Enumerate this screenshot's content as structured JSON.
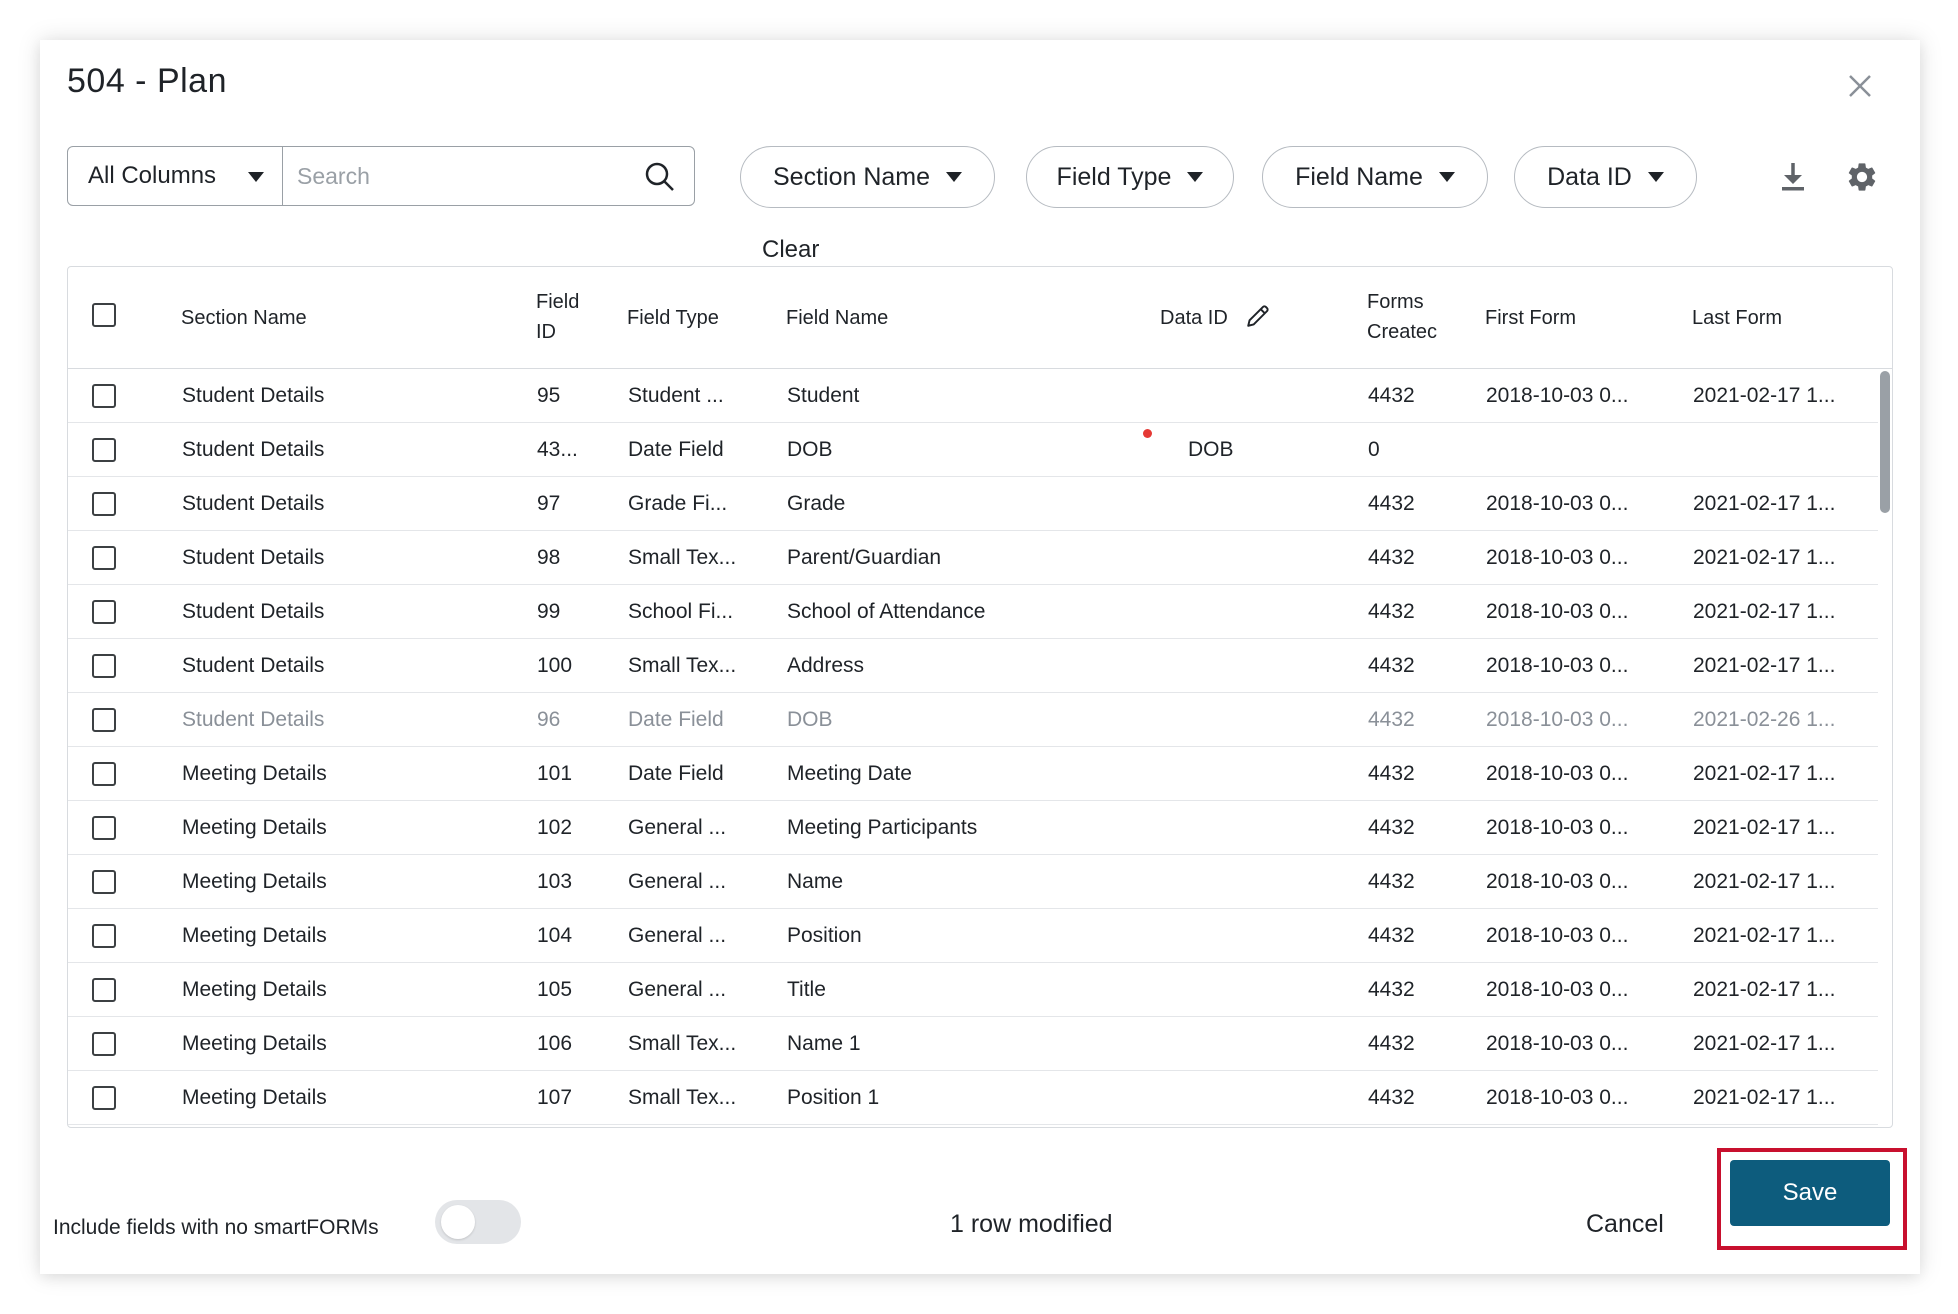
{
  "dialog": {
    "title": "504 - Plan"
  },
  "toolbar": {
    "column_select": "All Columns",
    "search_placeholder": "Search",
    "filters": [
      "Section Name",
      "Field Type",
      "Field Name",
      "Data ID"
    ],
    "clear_label": "Clear"
  },
  "table": {
    "headers": {
      "section_name": "Section Name",
      "field_id_1": "Field",
      "field_id_2": "ID",
      "field_type": "Field Type",
      "field_name": "Field Name",
      "data_id": "Data ID",
      "forms_created_1": "Forms",
      "forms_created_2": "Createc",
      "first_form": "First Form",
      "last_form": "Last Form"
    },
    "rows": [
      {
        "section": "Student Details",
        "field_id": "95",
        "field_type": "Student ...",
        "field_name": "Student",
        "data_id": "",
        "forms": "4432",
        "first": "2018-10-03 0...",
        "last": "2021-02-17 1..."
      },
      {
        "section": "Student Details",
        "field_id": "43...",
        "field_type": "Date Field",
        "field_name": "DOB",
        "data_id": "DOB",
        "forms": "0",
        "first": "",
        "last": ""
      },
      {
        "section": "Student Details",
        "field_id": "97",
        "field_type": "Grade Fi...",
        "field_name": "Grade",
        "data_id": "",
        "forms": "4432",
        "first": "2018-10-03 0...",
        "last": "2021-02-17 1..."
      },
      {
        "section": "Student Details",
        "field_id": "98",
        "field_type": "Small Tex...",
        "field_name": "Parent/Guardian",
        "data_id": "",
        "forms": "4432",
        "first": "2018-10-03 0...",
        "last": "2021-02-17 1..."
      },
      {
        "section": "Student Details",
        "field_id": "99",
        "field_type": "School Fi...",
        "field_name": "School of Attendance",
        "data_id": "",
        "forms": "4432",
        "first": "2018-10-03 0...",
        "last": "2021-02-17 1..."
      },
      {
        "section": "Student Details",
        "field_id": "100",
        "field_type": "Small Tex...",
        "field_name": "Address",
        "data_id": "",
        "forms": "4432",
        "first": "2018-10-03 0...",
        "last": "2021-02-17 1..."
      },
      {
        "section": "Student Details",
        "field_id": "96",
        "field_type": "Date Field",
        "field_name": "DOB",
        "data_id": "",
        "forms": "4432",
        "first": "2018-10-03 0...",
        "last": "2021-02-26 1..."
      },
      {
        "section": "Meeting Details",
        "field_id": "101",
        "field_type": "Date Field",
        "field_name": "Meeting Date",
        "data_id": "",
        "forms": "4432",
        "first": "2018-10-03 0...",
        "last": "2021-02-17 1..."
      },
      {
        "section": "Meeting Details",
        "field_id": "102",
        "field_type": "General ...",
        "field_name": "Meeting Participants",
        "data_id": "",
        "forms": "4432",
        "first": "2018-10-03 0...",
        "last": "2021-02-17 1..."
      },
      {
        "section": "Meeting Details",
        "field_id": "103",
        "field_type": "General ...",
        "field_name": "Name",
        "data_id": "",
        "forms": "4432",
        "first": "2018-10-03 0...",
        "last": "2021-02-17 1..."
      },
      {
        "section": "Meeting Details",
        "field_id": "104",
        "field_type": "General ...",
        "field_name": "Position",
        "data_id": "",
        "forms": "4432",
        "first": "2018-10-03 0...",
        "last": "2021-02-17 1..."
      },
      {
        "section": "Meeting Details",
        "field_id": "105",
        "field_type": "General ...",
        "field_name": "Title",
        "data_id": "",
        "forms": "4432",
        "first": "2018-10-03 0...",
        "last": "2021-02-17 1..."
      },
      {
        "section": "Meeting Details",
        "field_id": "106",
        "field_type": "Small Tex...",
        "field_name": "Name 1",
        "data_id": "",
        "forms": "4432",
        "first": "2018-10-03 0...",
        "last": "2021-02-17 1..."
      },
      {
        "section": "Meeting Details",
        "field_id": "107",
        "field_type": "Small Tex...",
        "field_name": "Position 1",
        "data_id": "",
        "forms": "4432",
        "first": "2018-10-03 0...",
        "last": "2021-02-17 1..."
      }
    ]
  },
  "footer": {
    "include_label": "Include fields with no smartFORMs",
    "modified_text": "1 row modified",
    "cancel_label": "Cancel",
    "save_label": "Save"
  },
  "colors": {
    "primary": "#0d5c7d",
    "highlight": "#c8102e",
    "modified_dot": "#e53935"
  },
  "icons": [
    "close-icon",
    "caret-down-icon",
    "search-icon",
    "download-icon",
    "gear-icon",
    "pencil-icon"
  ]
}
